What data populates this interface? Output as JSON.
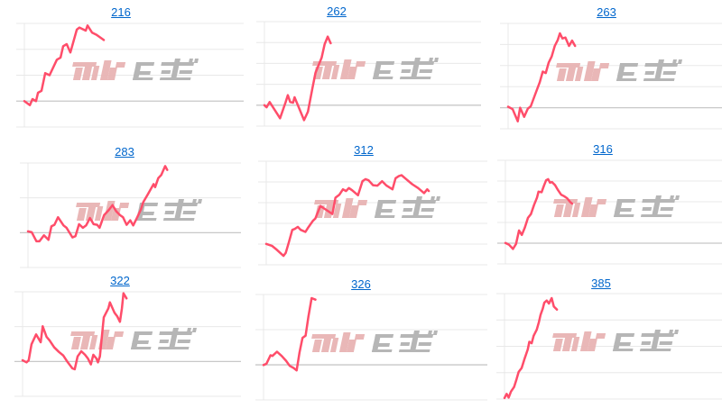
{
  "watermark": {
    "text": "みんかぶ",
    "color_a": "#e8b4b4",
    "color_b": "#b3b3b3"
  },
  "line_color": "#ff4d6a",
  "grid_color": "#e8e8e8",
  "baseline_color": "#c8c8c8",
  "chart_data": [
    {
      "type": "line",
      "title": "216",
      "xlim": [
        0,
        100
      ],
      "ylim": [
        0,
        100
      ],
      "yticks": [
        0,
        25,
        50,
        75,
        100
      ],
      "baseline": 25,
      "x": [
        0,
        2.5,
        3.7,
        5.3,
        6.2,
        7.8,
        9.5,
        11.5,
        14.8,
        16.5,
        17.7,
        19.3,
        21,
        23.9,
        25.1,
        28,
        28.8,
        30.9,
        32.9,
        36.2
      ],
      "y": [
        25,
        21,
        27,
        25,
        33,
        35,
        52,
        50,
        65,
        67,
        78,
        80,
        72,
        94,
        96,
        93,
        98,
        91,
        89,
        84
      ]
    },
    {
      "type": "line",
      "title": "262",
      "xlim": [
        0,
        100
      ],
      "ylim": [
        0,
        100
      ],
      "yticks": [
        0,
        20,
        40,
        60,
        80,
        100
      ],
      "baseline": 20,
      "x": [
        0,
        1,
        2.4,
        7.2,
        9.7,
        10.8,
        11.9,
        13.2,
        13.9,
        18.3,
        20.1,
        22.2,
        23.6,
        25,
        26.4,
        27.8,
        29.2,
        30.6
      ],
      "y": [
        20,
        18,
        23,
        7.5,
        22.4,
        29.6,
        23,
        22.4,
        27.6,
        5.7,
        13.8,
        36.8,
        51,
        58.3,
        65.5,
        78.4,
        85.6,
        79.3
      ]
    },
    {
      "type": "line",
      "title": "263",
      "xlim": [
        0,
        100
      ],
      "ylim": [
        0,
        100
      ],
      "yticks": [
        0,
        20,
        40,
        60,
        80,
        100
      ],
      "baseline": 20,
      "x": [
        0,
        2.1,
        4.5,
        5.6,
        7.5,
        9.2,
        10.6,
        12.7,
        14.8,
        16.2,
        17.6,
        19,
        20.4,
        21.8,
        23.2,
        24.2,
        25.4,
        26.8,
        28.5,
        29.9,
        31.3
      ],
      "y": [
        20.9,
        18.6,
        7.1,
        20,
        11.4,
        19.1,
        21.4,
        32.9,
        44.3,
        54.3,
        52.9,
        62.9,
        68.6,
        78.6,
        84.3,
        90.6,
        85.7,
        86.6,
        78.6,
        83.7,
        78.6
      ]
    },
    {
      "type": "line",
      "title": "283",
      "xlim": [
        0,
        100
      ],
      "ylim": [
        0,
        100
      ],
      "yticks": [
        0,
        33.3,
        66.7,
        100
      ],
      "baseline": 33.3,
      "x": [
        0,
        1.8,
        4,
        5.4,
        7.5,
        9.6,
        11,
        12.4,
        14.1,
        16.7,
        18.1,
        20.9,
        22.3,
        24,
        25.8,
        27.3,
        29.1,
        30.8,
        32.5,
        33.6,
        35.7,
        37.9,
        39.7,
        41.4,
        43.2,
        44.6,
        46.3,
        48,
        49.4,
        51.3,
        53.1,
        54.1,
        56.2,
        59,
        59.7,
        61.2,
        62.6,
        64.4,
        65.4
      ],
      "y": [
        34.6,
        33.7,
        25.1,
        25.1,
        30.8,
        26.5,
        39.5,
        40.9,
        48.1,
        40.3,
        38,
        28.8,
        30,
        41.5,
        38,
        40.3,
        47.3,
        41.5,
        40.9,
        38,
        50.1,
        54.8,
        59.7,
        53.9,
        50.1,
        48.1,
        40.9,
        45.2,
        40.3,
        48.1,
        55.9,
        62.5,
        69.7,
        79.8,
        76.9,
        85.6,
        88.5,
        97.1,
        93.4
      ]
    },
    {
      "type": "line",
      "title": "312",
      "xlim": [
        0,
        100
      ],
      "ylim": [
        0,
        100
      ],
      "yticks": [
        0,
        20,
        40,
        60,
        80,
        100
      ],
      "baseline": 0,
      "x": [
        0,
        2.7,
        4.8,
        7.8,
        8.8,
        10.2,
        11.8,
        12.9,
        14.3,
        15.6,
        17.7,
        19,
        21.1,
        22.2,
        24.5,
        26.5,
        27.9,
        29.9,
        31.3,
        33.1,
        34.7,
        36.1,
        37.4,
        38.8,
        41.5,
        43.5,
        44.9,
        46.3,
        48.3,
        50.3,
        52.4,
        54.4,
        57.1,
        58.5,
        59.9,
        61.2,
        63.3,
        66,
        68.7,
        71.4,
        72.8,
        73.5
      ],
      "y": [
        20.2,
        18.2,
        14.4,
        8.6,
        11.5,
        21.6,
        33.7,
        34.6,
        36.6,
        33.7,
        31.7,
        36,
        42.4,
        44.7,
        56.8,
        53.9,
        51.9,
        49,
        64.8,
        67.7,
        72.9,
        71.2,
        74.1,
        72,
        67.1,
        80.7,
        82.7,
        81.6,
        76.9,
        76.4,
        80.7,
        76.4,
        72.9,
        83.6,
        85.6,
        86.5,
        82.7,
        77.8,
        74.1,
        69.2,
        72.9,
        71.2
      ]
    },
    {
      "type": "line",
      "title": "316",
      "xlim": [
        0,
        100
      ],
      "ylim": [
        0,
        100
      ],
      "yticks": [
        0,
        20,
        40,
        60,
        80,
        100
      ],
      "baseline": 20,
      "x": [
        0,
        1.7,
        3.5,
        4.9,
        6.3,
        7.6,
        9,
        10.4,
        11.8,
        13.2,
        14.6,
        15.3,
        16.7,
        17.8,
        18.8,
        19.7,
        20.6,
        21.5,
        22.9,
        24.3,
        25.7,
        27.1,
        28.5,
        29.9,
        30.8
      ],
      "y": [
        20.2,
        18.4,
        14.4,
        19.3,
        32.3,
        28,
        35.2,
        44.4,
        48.1,
        56.8,
        64,
        69.7,
        69.2,
        75.5,
        80.7,
        81.8,
        78.4,
        79,
        76.1,
        71.2,
        66.9,
        65.4,
        63.4,
        59.7,
        58.2
      ]
    },
    {
      "type": "line",
      "title": "322",
      "xlim": [
        0,
        100
      ],
      "ylim": [
        0,
        100
      ],
      "yticks": [
        0,
        33.3,
        66.7,
        100
      ],
      "baseline": 33.3,
      "x": [
        0,
        1.8,
        2.8,
        4.1,
        6.2,
        8.3,
        9.2,
        11,
        12.4,
        14.5,
        16.6,
        18.6,
        20.7,
        22.8,
        23.9,
        25.2,
        26.9,
        28.6,
        29.9,
        31.3,
        32.4,
        33.8,
        34.5,
        35.4,
        37.2,
        39.3,
        40,
        42.1,
        43.4,
        44.6,
        45.5,
        46.2,
        47.6
      ],
      "y": [
        34.5,
        32.5,
        34.5,
        49.7,
        59.2,
        51.7,
        67,
        56.9,
        53.4,
        46.8,
        42.5,
        39.1,
        32.5,
        26.7,
        25.9,
        38.2,
        43.1,
        39.7,
        36.2,
        30.5,
        39.7,
        36.2,
        32.5,
        38.2,
        75.6,
        84.2,
        89.9,
        79.9,
        76.4,
        71.3,
        84.2,
        98.6,
        93.7
      ]
    },
    {
      "type": "line",
      "title": "326",
      "xlim": [
        0,
        100
      ],
      "ylim": [
        0,
        100
      ],
      "yticks": [
        0,
        33.3,
        66.7,
        100
      ],
      "baseline": 33.3,
      "x": [
        0,
        1.3,
        3.1,
        4,
        6,
        8.1,
        10.1,
        11.7,
        13.4,
        14.8,
        16.1,
        17.4,
        18.8,
        20.1,
        21.5,
        23.2
      ],
      "y": [
        33.1,
        34.3,
        42.3,
        41.7,
        45.7,
        41.7,
        37.1,
        32.3,
        30.3,
        28,
        45.1,
        58.9,
        60.9,
        79.4,
        96.6,
        95.1
      ]
    },
    {
      "type": "line",
      "title": "385",
      "xlim": [
        0,
        100
      ],
      "ylim": [
        0,
        100
      ],
      "yticks": [
        0,
        25,
        50,
        75,
        100
      ],
      "baseline": 0,
      "x": [
        0,
        1,
        1.9,
        3,
        4.4,
        5.5,
        6.5,
        7.9,
        9.3,
        10.7,
        11.4,
        12.5,
        13.4,
        14.8,
        15.8,
        16.6,
        17.6,
        18.3,
        19.4,
        20.4,
        21.7,
        22.7,
        24.1
      ],
      "y": [
        0.9,
        4.9,
        1.4,
        7.1,
        11.4,
        18.6,
        25.7,
        29.4,
        38.6,
        47.1,
        54.3,
        52.9,
        60,
        65.7,
        72.9,
        80,
        85.7,
        91.4,
        93.4,
        90.6,
        95.7,
        87.7,
        84.9
      ]
    }
  ]
}
